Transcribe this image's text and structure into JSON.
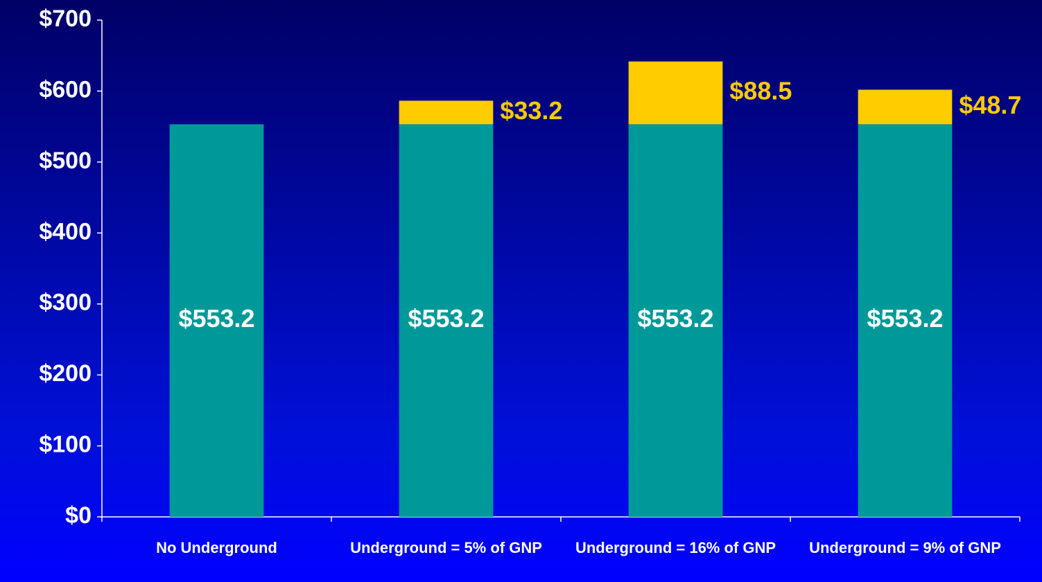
{
  "chart_data": {
    "type": "stacked_bar",
    "categories": [
      "No Underground",
      "Underground = 5% of GNP",
      "Underground = 16% of GNP",
      "Underground = 9% of GNP"
    ],
    "series": [
      {
        "color": "#009999",
        "values": [
          553.2,
          553.2,
          553.2,
          553.2
        ],
        "value_labels": [
          "$553.2",
          "$553.2",
          "$553.2",
          "$553.2"
        ],
        "label_color": "#ffffff"
      },
      {
        "color": "#ffcc00",
        "values": [
          null,
          33.2,
          88.5,
          48.7
        ],
        "value_labels": [
          null,
          "$33.2",
          "$88.5",
          "$48.7"
        ],
        "label_color": "#ffcc00"
      }
    ],
    "ylim": [
      0,
      700
    ],
    "yticks": [
      {
        "value": 0,
        "label": "$0"
      },
      {
        "value": 100,
        "label": "$100"
      },
      {
        "value": 200,
        "label": "$200"
      },
      {
        "value": 300,
        "label": "$300"
      },
      {
        "value": 400,
        "label": "$400"
      },
      {
        "value": 500,
        "label": "$500"
      },
      {
        "value": 600,
        "label": "$600"
      },
      {
        "value": 700,
        "label": "$700"
      }
    ],
    "grid": false
  }
}
